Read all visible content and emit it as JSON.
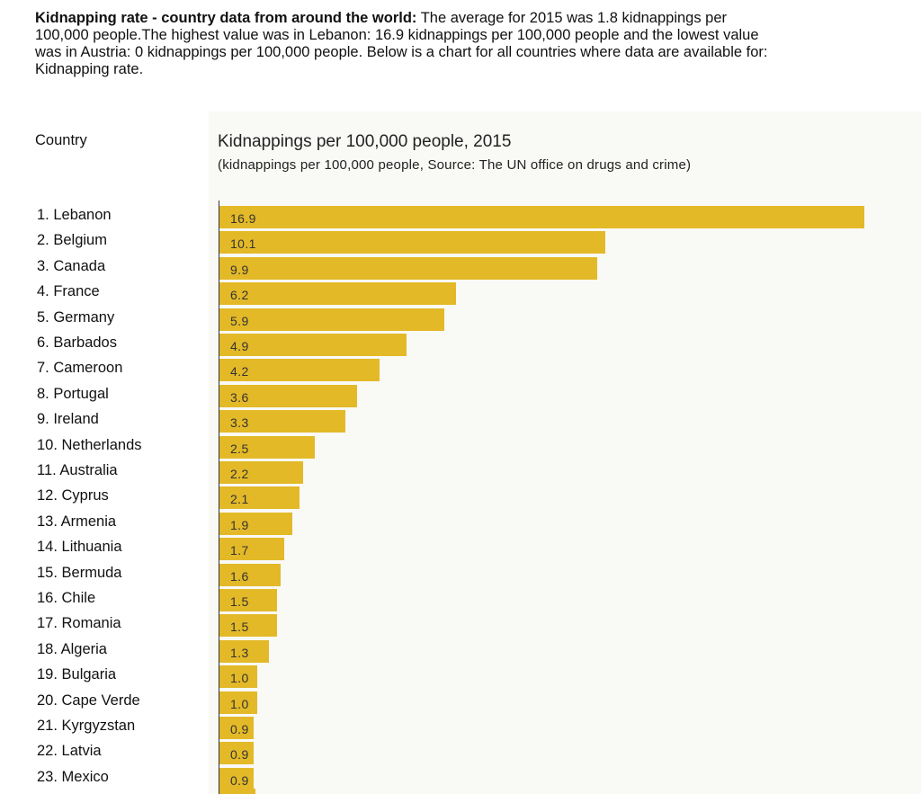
{
  "intro": {
    "bold": "Kidnapping rate - country data from around the world:",
    "text": " The average for 2015 was 1.8 kidnappings per 100,000 people.The highest value was in Lebanon: 16.9 kidnappings per 100,000 people and the lowest value was in Austria: 0 kidnappings per 100,000 people. Below is a chart for all countries where data are available for: Kidnapping rate."
  },
  "country_header": "Country",
  "colors": {
    "bar": "#e3b928",
    "panel": "#f9f9f6"
  },
  "chart_data": {
    "type": "bar",
    "orientation": "horizontal",
    "title": "Kidnappings per 100,000 people, 2015",
    "subtitle": "(kidnappings per 100,000 people, Source: The UN office on drugs and crime)",
    "categories": [
      "1. Lebanon",
      "2. Belgium",
      "3. Canada",
      "4. France",
      "5. Germany",
      "6. Barbados",
      "7. Cameroon",
      "8. Portugal",
      "9. Ireland",
      "10. Netherlands",
      "11. Australia",
      "12. Cyprus",
      "13. Armenia",
      "14. Lithuania",
      "15. Bermuda",
      "16. Chile",
      "17. Romania",
      "18. Algeria",
      "19. Bulgaria",
      "20. Cape Verde",
      "21. Kyrgyzstan",
      "22. Latvia",
      "23. Mexico"
    ],
    "values": [
      16.9,
      10.1,
      9.9,
      6.2,
      5.9,
      4.9,
      4.2,
      3.6,
      3.3,
      2.5,
      2.2,
      2.1,
      1.9,
      1.7,
      1.6,
      1.5,
      1.5,
      1.3,
      1.0,
      1.0,
      0.9,
      0.9,
      0.9
    ],
    "value_labels": [
      "16.9",
      "10.1",
      "9.9",
      "6.2",
      "5.9",
      "4.9",
      "4.2",
      "3.6",
      "3.3",
      "2.5",
      "2.2",
      "2.1",
      "1.9",
      "1.7",
      "1.6",
      "1.5",
      "1.5",
      "1.3",
      "1.0",
      "1.0",
      "0.9",
      "0.9",
      "0.9"
    ],
    "xlim": [
      0,
      16.9
    ],
    "grid": false
  }
}
